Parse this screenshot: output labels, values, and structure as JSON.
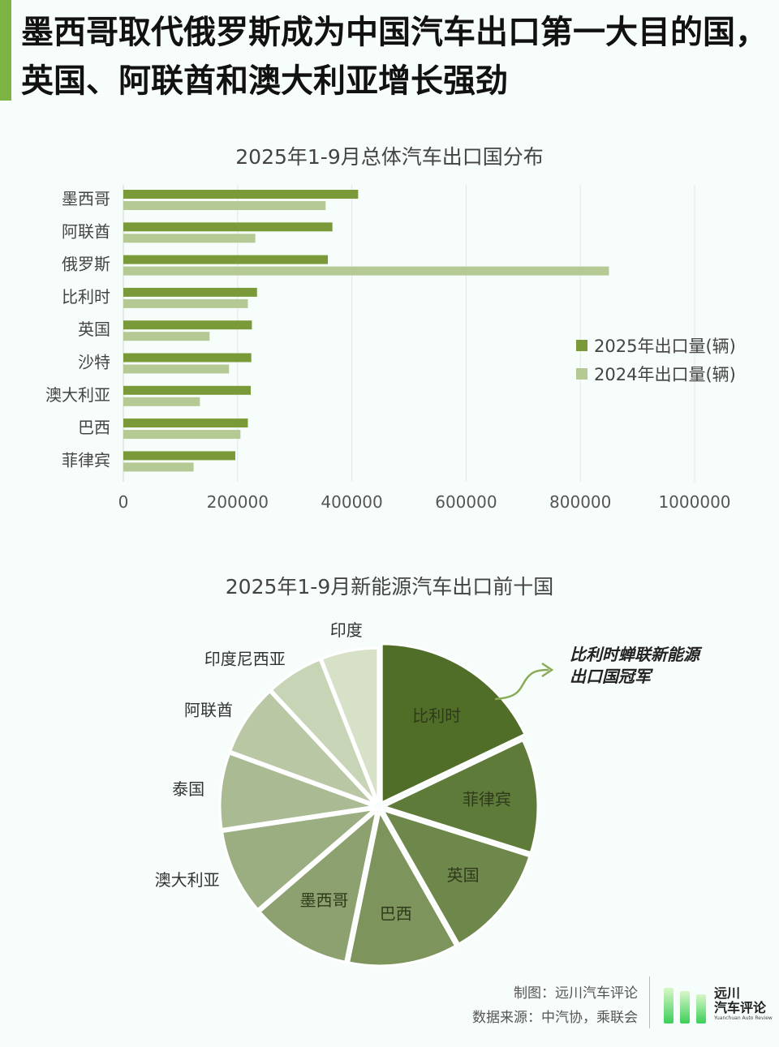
{
  "headline": "墨西哥取代俄罗斯成为中国汽车出口第一大目的国，英国、阿联酋和澳大利亚增长强劲",
  "colors": {
    "accent": "#7cb342",
    "series_2025": "#7a9a3a",
    "series_2024": "#b5c994",
    "annotation_arrow": "#8aab55"
  },
  "chart_data": [
    {
      "type": "bar",
      "orientation": "horizontal",
      "title": "2025年1-9月总体汽车出口国分布",
      "categories": [
        "墨西哥",
        "阿联酋",
        "俄罗斯",
        "比利时",
        "英国",
        "沙特",
        "澳大利亚",
        "巴西",
        "菲律宾"
      ],
      "series": [
        {
          "name": "2025年出口量(辆)",
          "values": [
            411000,
            366000,
            358000,
            234000,
            225000,
            224000,
            223000,
            218000,
            196000
          ]
        },
        {
          "name": "2024年出口量(辆)",
          "values": [
            354000,
            231000,
            850000,
            218000,
            151000,
            185000,
            134000,
            205000,
            123000
          ]
        }
      ],
      "xlim": [
        0,
        1000000
      ],
      "x_ticks": [
        "0",
        "200000",
        "400000",
        "600000",
        "800000",
        "1000000"
      ],
      "grid": true,
      "legend_position": "right"
    },
    {
      "type": "pie",
      "title": "2025年1-9月新能源汽车出口前十国",
      "labels": [
        "比利时",
        "菲律宾",
        "英国",
        "巴西",
        "墨西哥",
        "澳大利亚",
        "泰国",
        "阿联酋",
        "印度尼西亚",
        "印度"
      ],
      "values": [
        18,
        12,
        12,
        11.5,
        10.5,
        9,
        8,
        7.5,
        6,
        6
      ],
      "annotation": "比利时蝉联新能源出口国冠军"
    }
  ],
  "annotation": {
    "line1": "比利时蝉联新能源",
    "line2": "出口国冠军"
  },
  "footer": {
    "credit": "制图：远川汽车评论",
    "source": "数据来源：中汽协，乘联会"
  },
  "logo": {
    "cn_line1": "远川",
    "cn_line2": "汽车评论",
    "en": "Yuanchuan Auto Review"
  }
}
